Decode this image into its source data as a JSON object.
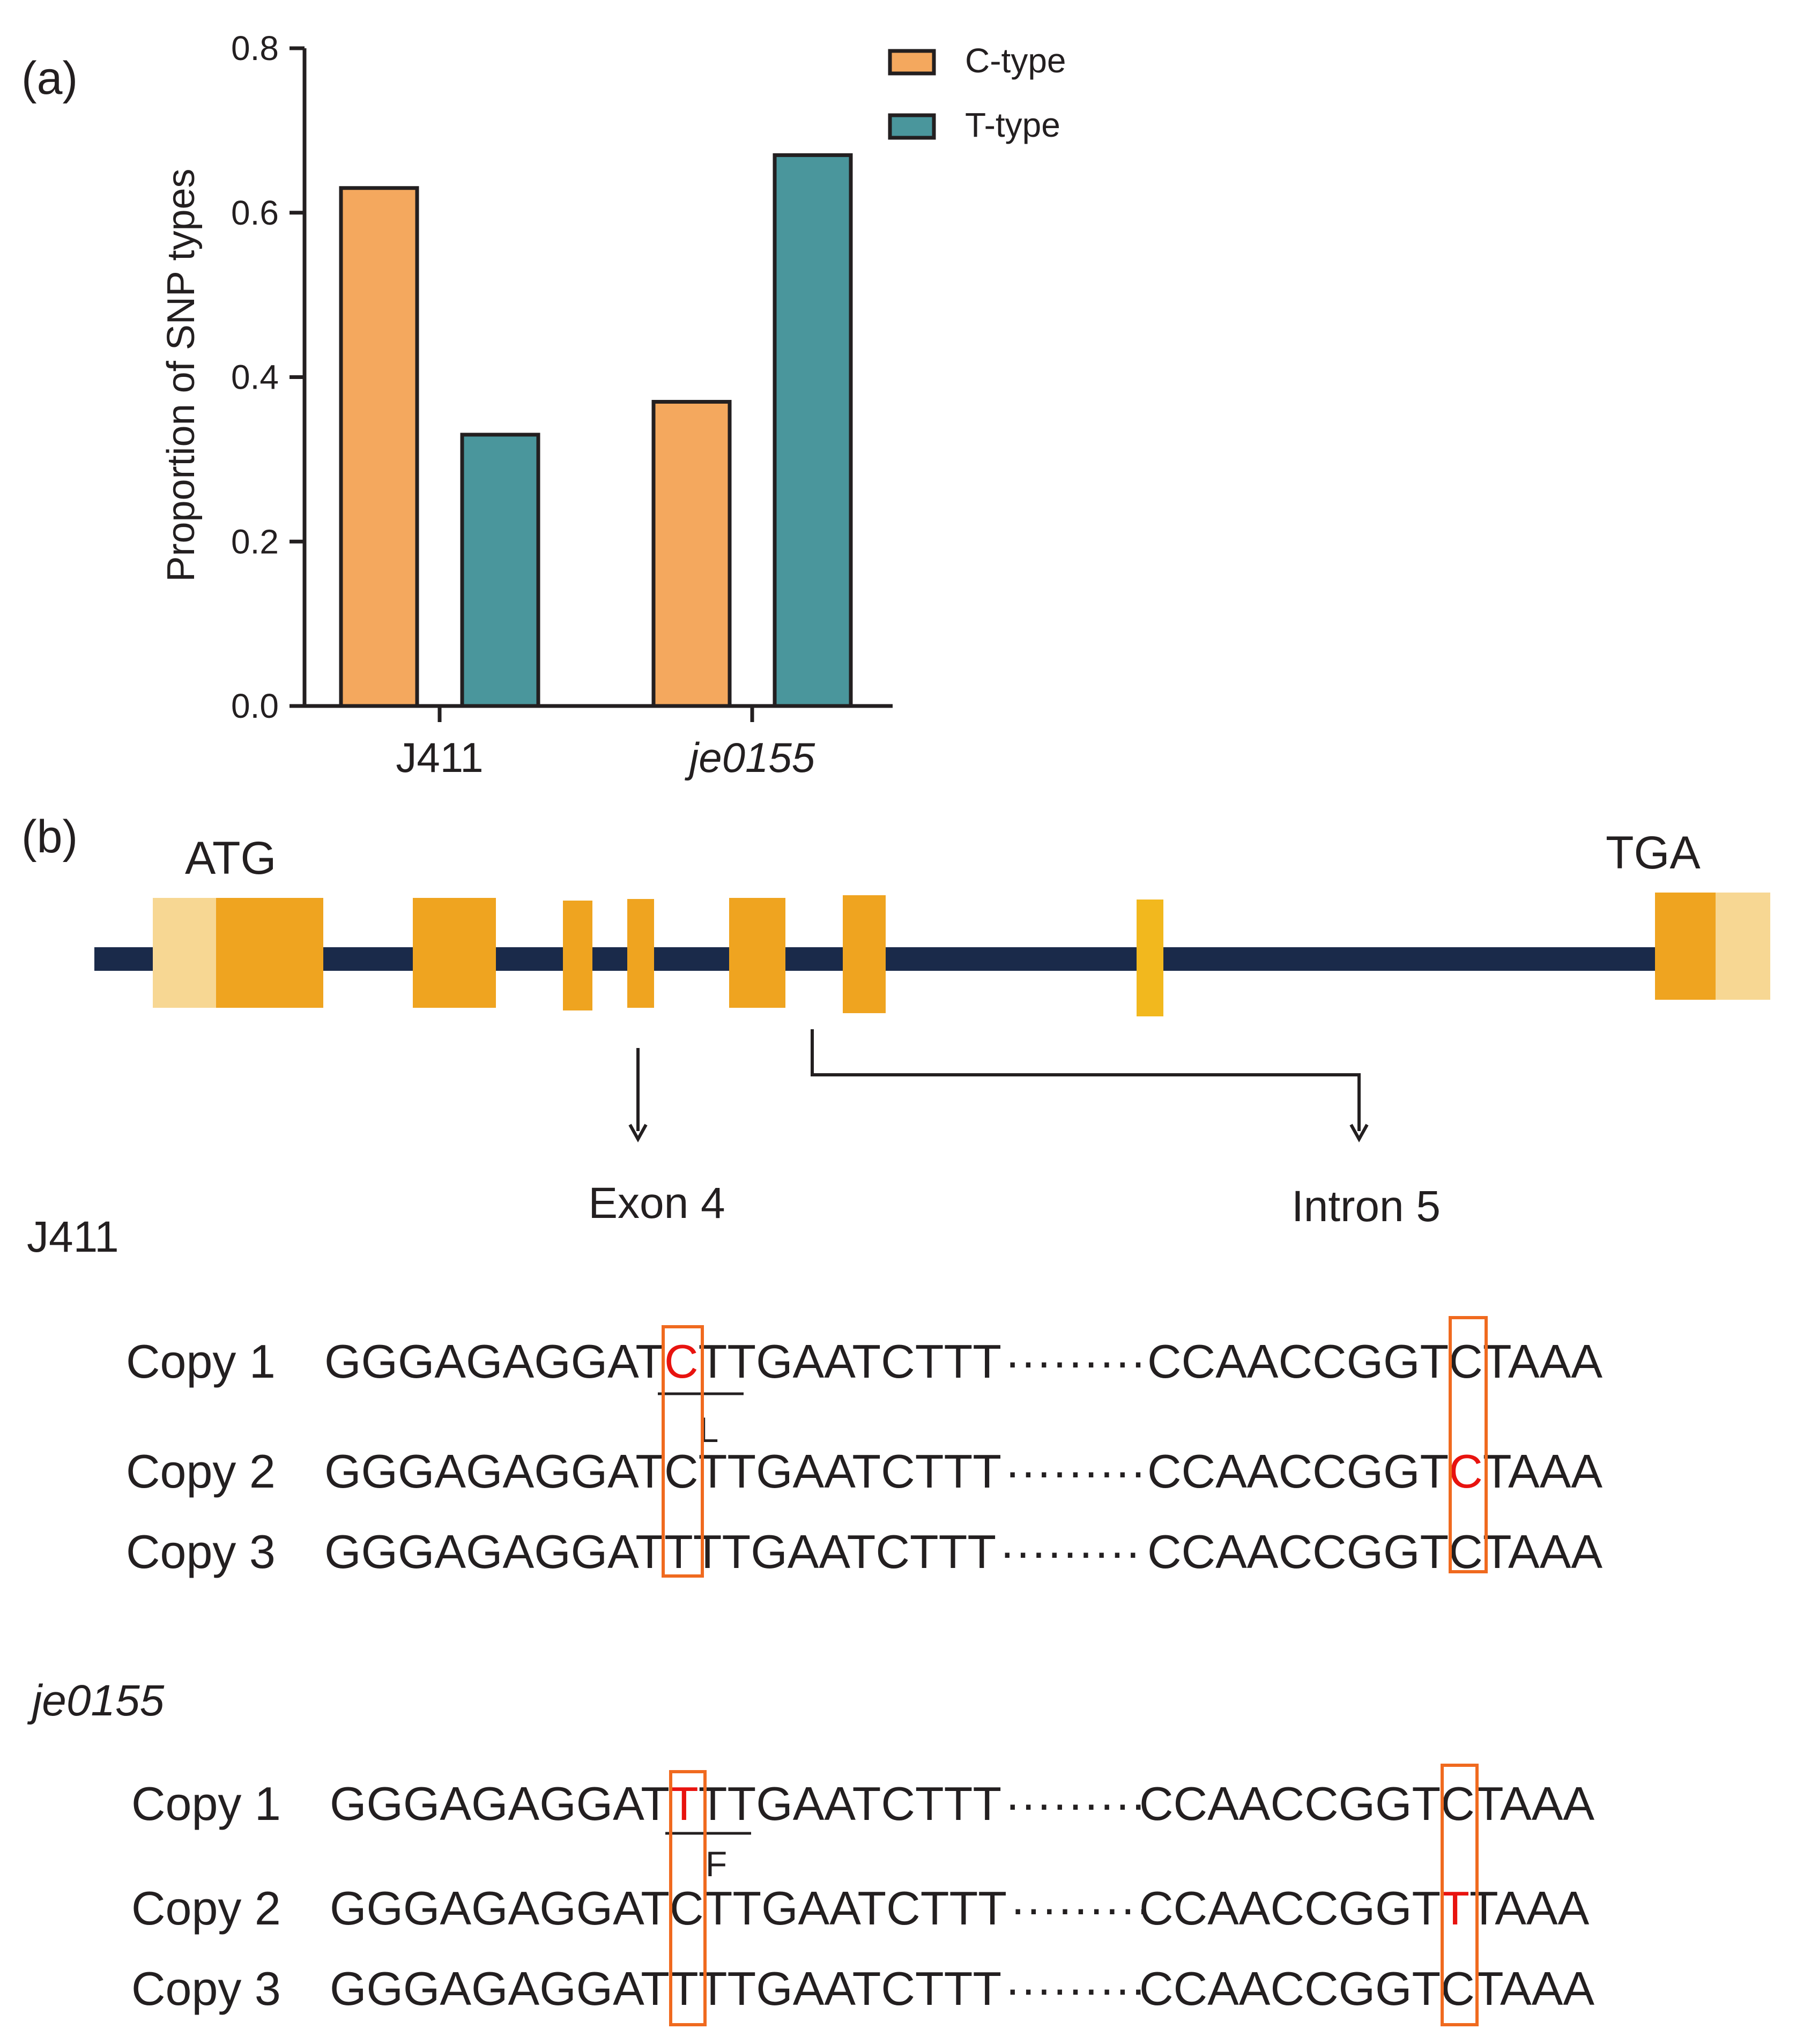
{
  "panel_a": {
    "label": "(a)",
    "chart_data": {
      "type": "bar",
      "categories": [
        "J411",
        "je0155"
      ],
      "series": [
        {
          "name": "C-type",
          "values": [
            0.63,
            0.37
          ],
          "color": "#f4a85e"
        },
        {
          "name": "T-type",
          "values": [
            0.33,
            0.67
          ],
          "color": "#4a969c"
        }
      ],
      "ylabel": "Proportion of SNP types",
      "xlabel": "",
      "ylim": [
        0,
        0.8
      ],
      "yticks": [
        "0.0",
        "0.2",
        "0.4",
        "0.6",
        "0.8"
      ],
      "grid": false,
      "legend": "top-right"
    }
  },
  "panel_b": {
    "label": "(b)",
    "gene": {
      "start_codon": "ATG",
      "stop_codon": "TGA",
      "intron_color": "#1a2a4a",
      "exon_color": "#efa420",
      "utr_color": "#f7d793",
      "highlight_exon_color": "#f2b81e"
    },
    "regions": {
      "exon": "Exon 4",
      "intron": "Intron 5"
    },
    "groups": [
      {
        "name": "J411",
        "italic": false,
        "amino_acid": "L",
        "copies": [
          {
            "label": "Copy 1",
            "left": [
              "GGGAGAGGAT",
              "C",
              "TTGAATCTTT"
            ],
            "right": [
              "CCAACCGGT",
              "C",
              "TAAA"
            ],
            "red_left": true,
            "red_right": false
          },
          {
            "label": "Copy 2",
            "left": [
              "GGGAGAGGAT",
              "C",
              "TTGAATCTTT"
            ],
            "right": [
              "CCAACCGGT",
              "C",
              "TAAA"
            ],
            "red_left": false,
            "red_right": true
          },
          {
            "label": "Copy 3",
            "left": [
              "GGGAGAGGAT",
              "T",
              "TTGAATCTTT"
            ],
            "right": [
              "CCAACCGGT",
              "C",
              "TAAA"
            ],
            "red_left": false,
            "red_right": false
          }
        ]
      },
      {
        "name": "je0155",
        "italic": true,
        "amino_acid": "F",
        "copies": [
          {
            "label": "Copy 1",
            "left": [
              "GGGAGAGGAT",
              "T",
              "TTGAATCTTT"
            ],
            "right": [
              "CCAACCGGT",
              "C",
              "TAAA"
            ],
            "red_left": true,
            "red_right": false
          },
          {
            "label": "Copy 2",
            "left": [
              "GGGAGAGGAT",
              "C",
              "TTGAATCTTT"
            ],
            "right": [
              "CCAACCGGT",
              "T",
              "TAAA"
            ],
            "red_left": false,
            "red_right": true
          },
          {
            "label": "Copy 3",
            "left": [
              "GGGAGAGGAT",
              "T",
              "TTGAATCTTT"
            ],
            "right": [
              "CCAACCGGT",
              "C",
              "TAAA"
            ],
            "red_left": false,
            "red_right": false
          }
        ]
      }
    ],
    "dots": "·········",
    "snp_box_color": "#f06a1f"
  }
}
